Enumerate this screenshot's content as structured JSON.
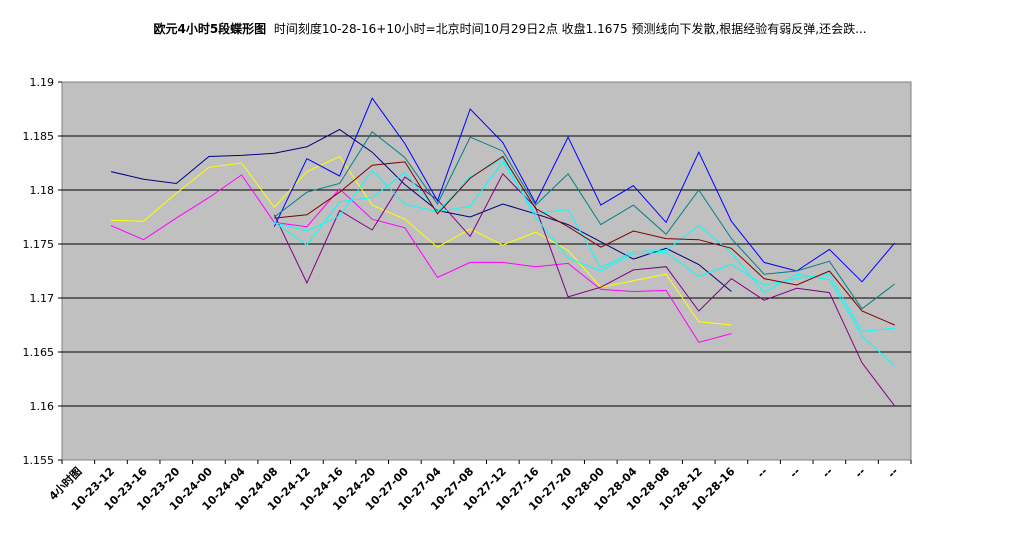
{
  "chart_data": {
    "type": "line",
    "title": "欧元4小时5段蝶形图",
    "subtitle": "时间刻度10-28-16+10小时=北京时间10月29日2点 收盘1.1675 预测线向下发散,根据经验有弱反弹,还会跌...",
    "xlabel": "",
    "ylabel": "",
    "ylim": [
      1.155,
      1.19
    ],
    "yticks": [
      "1.155",
      "1.16",
      "1.165",
      "1.17",
      "1.175",
      "1.18",
      "1.185",
      "1.19"
    ],
    "grid": true,
    "legend": "none",
    "categories": [
      "4小时图",
      "10-23-12",
      "10-23-16",
      "10-23-20",
      "10-24-00",
      "10-24-04",
      "10-24-08",
      "10-24-12",
      "10-24-16",
      "10-24-20",
      "10-27-00",
      "10-27-04",
      "10-27-08",
      "10-27-12",
      "10-27-16",
      "10-27-20",
      "10-28-00",
      "10-28-04",
      "10-28-08",
      "10-28-12",
      "10-28-16",
      "--",
      "--",
      "--",
      "--",
      "--"
    ],
    "series": [
      {
        "color": "#000080",
        "values": [
          null,
          1.1817,
          1.181,
          1.1806,
          1.1831,
          1.1832,
          1.1834,
          1.184,
          1.1856,
          1.1835,
          1.1805,
          1.1781,
          1.1775,
          1.1787,
          1.1778,
          1.1768,
          1.1752,
          1.1736,
          1.1746,
          1.1731,
          1.1706,
          null,
          null,
          null,
          null,
          null
        ]
      },
      {
        "color": "#ffff00",
        "values": [
          null,
          1.1772,
          1.1771,
          1.1797,
          1.1821,
          1.1825,
          1.1784,
          1.1817,
          1.1831,
          1.1786,
          1.1773,
          1.1747,
          1.1764,
          1.1749,
          1.1761,
          1.1744,
          1.171,
          1.1716,
          1.1722,
          1.1678,
          1.1675,
          null,
          null,
          null,
          null,
          null
        ]
      },
      {
        "color": "#ff00ff",
        "values": [
          null,
          1.1767,
          1.1754,
          1.1774,
          1.1793,
          1.1814,
          1.177,
          1.1766,
          1.1801,
          1.1773,
          1.1765,
          1.1719,
          1.1733,
          1.1733,
          1.1729,
          1.1732,
          1.1708,
          1.1706,
          1.1707,
          1.1659,
          1.1667,
          null,
          null,
          null,
          null,
          null
        ]
      },
      {
        "color": "#800080",
        "values": [
          null,
          null,
          null,
          null,
          null,
          null,
          1.1777,
          1.1714,
          1.1781,
          1.1763,
          1.1812,
          1.1791,
          1.1757,
          1.1815,
          1.1784,
          1.1701,
          1.171,
          1.1726,
          1.1729,
          1.1688,
          1.1718,
          1.1698,
          1.1709,
          1.1705,
          1.164,
          1.16
        ]
      },
      {
        "color": "#0000ff",
        "values": [
          null,
          null,
          null,
          null,
          null,
          null,
          1.1766,
          1.1829,
          1.1813,
          1.1885,
          1.1843,
          1.179,
          1.1875,
          1.1844,
          1.1788,
          1.1849,
          1.1786,
          1.1804,
          1.177,
          1.1835,
          1.1771,
          1.1733,
          1.1725,
          1.1745,
          1.1715,
          1.1751
        ]
      },
      {
        "color": "#008080",
        "values": [
          null,
          null,
          null,
          null,
          null,
          null,
          1.1775,
          1.1798,
          1.1806,
          1.1854,
          1.183,
          1.1787,
          1.1849,
          1.1836,
          1.1786,
          1.1815,
          1.1768,
          1.1786,
          1.1759,
          1.18,
          1.1755,
          1.1722,
          1.1725,
          1.1734,
          1.169,
          1.1713
        ]
      },
      {
        "color": "#00ffff",
        "values": [
          null,
          null,
          null,
          null,
          null,
          null,
          1.177,
          1.1749,
          1.1789,
          1.1793,
          1.1816,
          1.178,
          1.1785,
          1.1826,
          1.1778,
          1.1782,
          1.1728,
          1.1743,
          1.1744,
          1.1767,
          1.1742,
          1.1705,
          1.1722,
          1.1717,
          1.1665,
          1.1637
        ]
      },
      {
        "color": "#00ffff",
        "values": [
          null,
          null,
          null,
          null,
          null,
          null,
          1.177,
          1.1762,
          1.1776,
          1.1818,
          1.1787,
          1.178,
          1.1812,
          1.1829,
          1.1775,
          1.1737,
          1.1725,
          1.1741,
          1.1742,
          1.172,
          1.1731,
          1.1712,
          1.1718,
          1.1722,
          1.1669,
          1.1672
        ]
      },
      {
        "color": "#800000",
        "values": [
          null,
          null,
          null,
          null,
          null,
          null,
          1.1774,
          1.1777,
          1.1798,
          1.1823,
          1.1826,
          1.1778,
          1.1811,
          1.1831,
          1.1783,
          1.1766,
          1.1747,
          1.1762,
          1.1755,
          1.1754,
          1.1746,
          1.1718,
          1.1712,
          1.1725,
          1.1688,
          1.1675
        ]
      }
    ]
  }
}
